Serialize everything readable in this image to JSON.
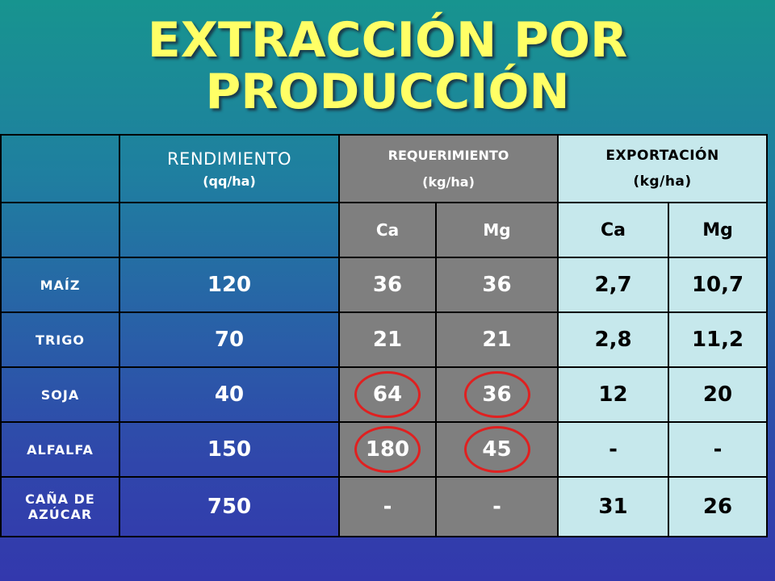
{
  "title_line1": "EXTRACCIÓN POR",
  "title_line2": "PRODUCCIÓN",
  "headers": {
    "rendimiento": "RENDIMIENTO",
    "rendimiento_unit": "(qq/ha)",
    "requerimiento": "REQUERIMIENTO",
    "requerimiento_unit": "(kg/ha)",
    "exportacion": "EXPORTACIÓN",
    "exportacion_unit": "(kg/ha)",
    "req_ca": "Ca",
    "req_mg": "Mg",
    "exp_ca": "Ca",
    "exp_mg": "Mg"
  },
  "rows": [
    {
      "crop": "MAÍZ",
      "crop2": "",
      "rend": "120",
      "req_ca": "36",
      "req_mg": "36",
      "exp_ca": "2,7",
      "exp_mg": "10,7"
    },
    {
      "crop": "TRIGO",
      "crop2": "",
      "rend": "70",
      "req_ca": "21",
      "req_mg": "21",
      "exp_ca": "2,8",
      "exp_mg": "11,2"
    },
    {
      "crop": "SOJA",
      "crop2": "",
      "rend": "40",
      "req_ca": "64",
      "req_mg": "36",
      "exp_ca": "12",
      "exp_mg": "20"
    },
    {
      "crop": "ALFALFA",
      "crop2": "",
      "rend": "150",
      "req_ca": "180",
      "req_mg": "45",
      "exp_ca": "-",
      "exp_mg": "-"
    },
    {
      "crop": "CAÑA DE",
      "crop2": "AZÚCAR",
      "rend": "750",
      "req_ca": "-",
      "req_mg": "-",
      "exp_ca": "31",
      "exp_mg": "26"
    }
  ],
  "highlight_color": "#e02020"
}
